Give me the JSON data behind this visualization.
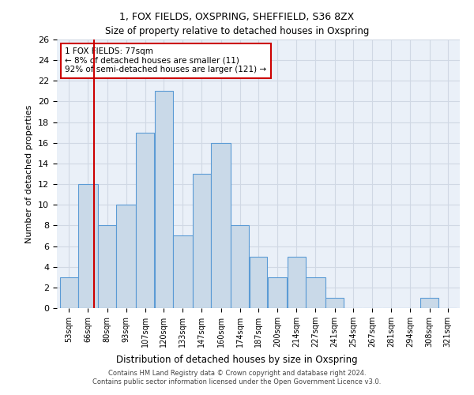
{
  "title": "1, FOX FIELDS, OXSPRING, SHEFFIELD, S36 8ZX",
  "subtitle": "Size of property relative to detached houses in Oxspring",
  "xlabel_bottom": "Distribution of detached houses by size in Oxspring",
  "ylabel": "Number of detached properties",
  "footer_line1": "Contains HM Land Registry data © Crown copyright and database right 2024.",
  "footer_line2": "Contains public sector information licensed under the Open Government Licence v3.0.",
  "bin_labels": [
    "53sqm",
    "66sqm",
    "80sqm",
    "93sqm",
    "107sqm",
    "120sqm",
    "133sqm",
    "147sqm",
    "160sqm",
    "174sqm",
    "187sqm",
    "200sqm",
    "214sqm",
    "227sqm",
    "241sqm",
    "254sqm",
    "267sqm",
    "281sqm",
    "294sqm",
    "308sqm",
    "321sqm"
  ],
  "bar_values": [
    3,
    12,
    8,
    10,
    17,
    21,
    7,
    13,
    16,
    8,
    5,
    3,
    5,
    3,
    1,
    0,
    0,
    0,
    0,
    1,
    0
  ],
  "bin_edges": [
    53,
    66,
    80,
    93,
    107,
    120,
    133,
    147,
    160,
    174,
    187,
    200,
    214,
    227,
    241,
    254,
    267,
    281,
    294,
    308,
    321,
    334
  ],
  "bar_color": "#c9d9e8",
  "bar_edge_color": "#5b9bd5",
  "grid_color": "#d0d8e4",
  "background_color": "#eaf0f8",
  "property_size": 77,
  "property_line_color": "#cc0000",
  "annotation_line1": "1 FOX FIELDS: 77sqm",
  "annotation_line2": "← 8% of detached houses are smaller (11)",
  "annotation_line3": "92% of semi-detached houses are larger (121) →",
  "annotation_box_color": "#ffffff",
  "annotation_border_color": "#cc0000",
  "ylim": [
    0,
    26
  ],
  "yticks": [
    0,
    2,
    4,
    6,
    8,
    10,
    12,
    14,
    16,
    18,
    20,
    22,
    24,
    26
  ]
}
